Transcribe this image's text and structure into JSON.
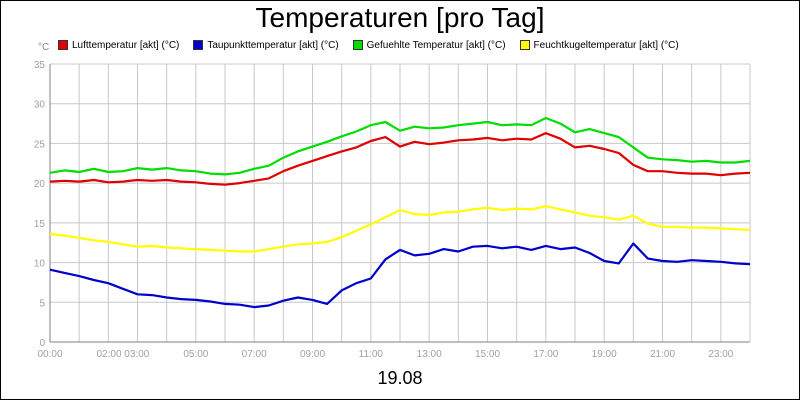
{
  "chart_data": {
    "type": "line",
    "title": "Temperaturen [pro Tag]",
    "ylabel": "°C",
    "xlabel": "19.08",
    "ylim": [
      0,
      35
    ],
    "yticks": [
      0,
      5,
      10,
      15,
      20,
      25,
      30,
      35
    ],
    "xlim": [
      0,
      24
    ],
    "xticks": [
      {
        "h": 0,
        "label": "00:00"
      },
      {
        "h": 2.5,
        "label": "02:00 03:00"
      },
      {
        "h": 5,
        "label": "05:00"
      },
      {
        "h": 7,
        "label": "07:00"
      },
      {
        "h": 9,
        "label": "09:00"
      },
      {
        "h": 11,
        "label": "11:00"
      },
      {
        "h": 13,
        "label": "13:00"
      },
      {
        "h": 15,
        "label": "15:00"
      },
      {
        "h": 17,
        "label": "17:00"
      },
      {
        "h": 19,
        "label": "19:00"
      },
      {
        "h": 21,
        "label": "21:00"
      },
      {
        "h": 23,
        "label": "23:00"
      }
    ],
    "grid": true,
    "legend_position": "top",
    "x": [
      0,
      0.5,
      1,
      1.5,
      2,
      2.5,
      3,
      3.5,
      4,
      4.5,
      5,
      5.5,
      6,
      6.5,
      7,
      7.5,
      8,
      8.5,
      9,
      9.5,
      10,
      10.5,
      11,
      11.5,
      12,
      12.5,
      13,
      13.5,
      14,
      14.5,
      15,
      15.5,
      16,
      16.5,
      17,
      17.5,
      18,
      18.5,
      19,
      19.5,
      20,
      20.5,
      21,
      21.5,
      22,
      22.5,
      23,
      23.5,
      24
    ],
    "series": [
      {
        "name": "Lufttemperatur [akt] (°C)",
        "color": "#e00000",
        "values": [
          20.2,
          20.3,
          20.2,
          20.4,
          20.1,
          20.2,
          20.4,
          20.3,
          20.4,
          20.2,
          20.1,
          19.9,
          19.8,
          20.0,
          20.3,
          20.6,
          21.5,
          22.2,
          22.8,
          23.4,
          24.0,
          24.5,
          25.3,
          25.8,
          24.6,
          25.2,
          24.9,
          25.1,
          25.4,
          25.5,
          25.7,
          25.4,
          25.6,
          25.5,
          26.3,
          25.6,
          24.5,
          24.7,
          24.3,
          23.8,
          22.3,
          21.5,
          21.5,
          21.3,
          21.2,
          21.2,
          21.0,
          21.2,
          21.3
        ]
      },
      {
        "name": "Taupunkttemperatur [akt] (°C)",
        "color": "#0000cc",
        "values": [
          9.1,
          8.7,
          8.3,
          7.8,
          7.4,
          6.7,
          6.0,
          5.9,
          5.6,
          5.4,
          5.3,
          5.1,
          4.8,
          4.7,
          4.4,
          4.6,
          5.2,
          5.6,
          5.3,
          4.8,
          6.5,
          7.4,
          8.0,
          10.4,
          11.6,
          10.9,
          11.1,
          11.7,
          11.4,
          12.0,
          12.1,
          11.8,
          12.0,
          11.6,
          12.1,
          11.7,
          11.9,
          11.2,
          10.2,
          9.9,
          12.4,
          10.5,
          10.2,
          10.1,
          10.3,
          10.2,
          10.1,
          9.9,
          9.8
        ]
      },
      {
        "name": "Gefuehlte Temperatur [akt] (°C)",
        "color": "#00dd00",
        "values": [
          21.3,
          21.6,
          21.4,
          21.8,
          21.4,
          21.5,
          21.9,
          21.7,
          21.9,
          21.6,
          21.5,
          21.2,
          21.1,
          21.3,
          21.8,
          22.2,
          23.2,
          24.0,
          24.6,
          25.2,
          25.9,
          26.5,
          27.3,
          27.7,
          26.6,
          27.1,
          26.9,
          27.0,
          27.3,
          27.5,
          27.7,
          27.3,
          27.4,
          27.3,
          28.2,
          27.5,
          26.4,
          26.8,
          26.3,
          25.8,
          24.5,
          23.2,
          23.0,
          22.9,
          22.7,
          22.8,
          22.6,
          22.6,
          22.8
        ]
      },
      {
        "name": "Feuchtkugeltemperatur [akt] (°C)",
        "color": "#ffff00",
        "values": [
          13.6,
          13.4,
          13.1,
          12.8,
          12.6,
          12.3,
          12.0,
          12.1,
          11.9,
          11.8,
          11.7,
          11.6,
          11.5,
          11.4,
          11.4,
          11.7,
          12.0,
          12.3,
          12.4,
          12.6,
          13.2,
          14.0,
          14.8,
          15.7,
          16.6,
          16.1,
          16.0,
          16.3,
          16.4,
          16.7,
          16.9,
          16.6,
          16.8,
          16.7,
          17.1,
          16.7,
          16.3,
          15.9,
          15.7,
          15.4,
          15.9,
          14.9,
          14.5,
          14.5,
          14.4,
          14.4,
          14.3,
          14.2,
          14.1
        ]
      }
    ]
  },
  "legend": {
    "items": [
      {
        "label": "Lufttemperatur [akt] (°C)",
        "color": "#e00000"
      },
      {
        "label": "Taupunkttemperatur [akt] (°C)",
        "color": "#0000cc"
      },
      {
        "label": "Gefuehlte Temperatur [akt] (°C)",
        "color": "#00dd00"
      },
      {
        "label": "Feuchtkugeltemperatur [akt] (°C)",
        "color": "#ffff00"
      }
    ]
  }
}
